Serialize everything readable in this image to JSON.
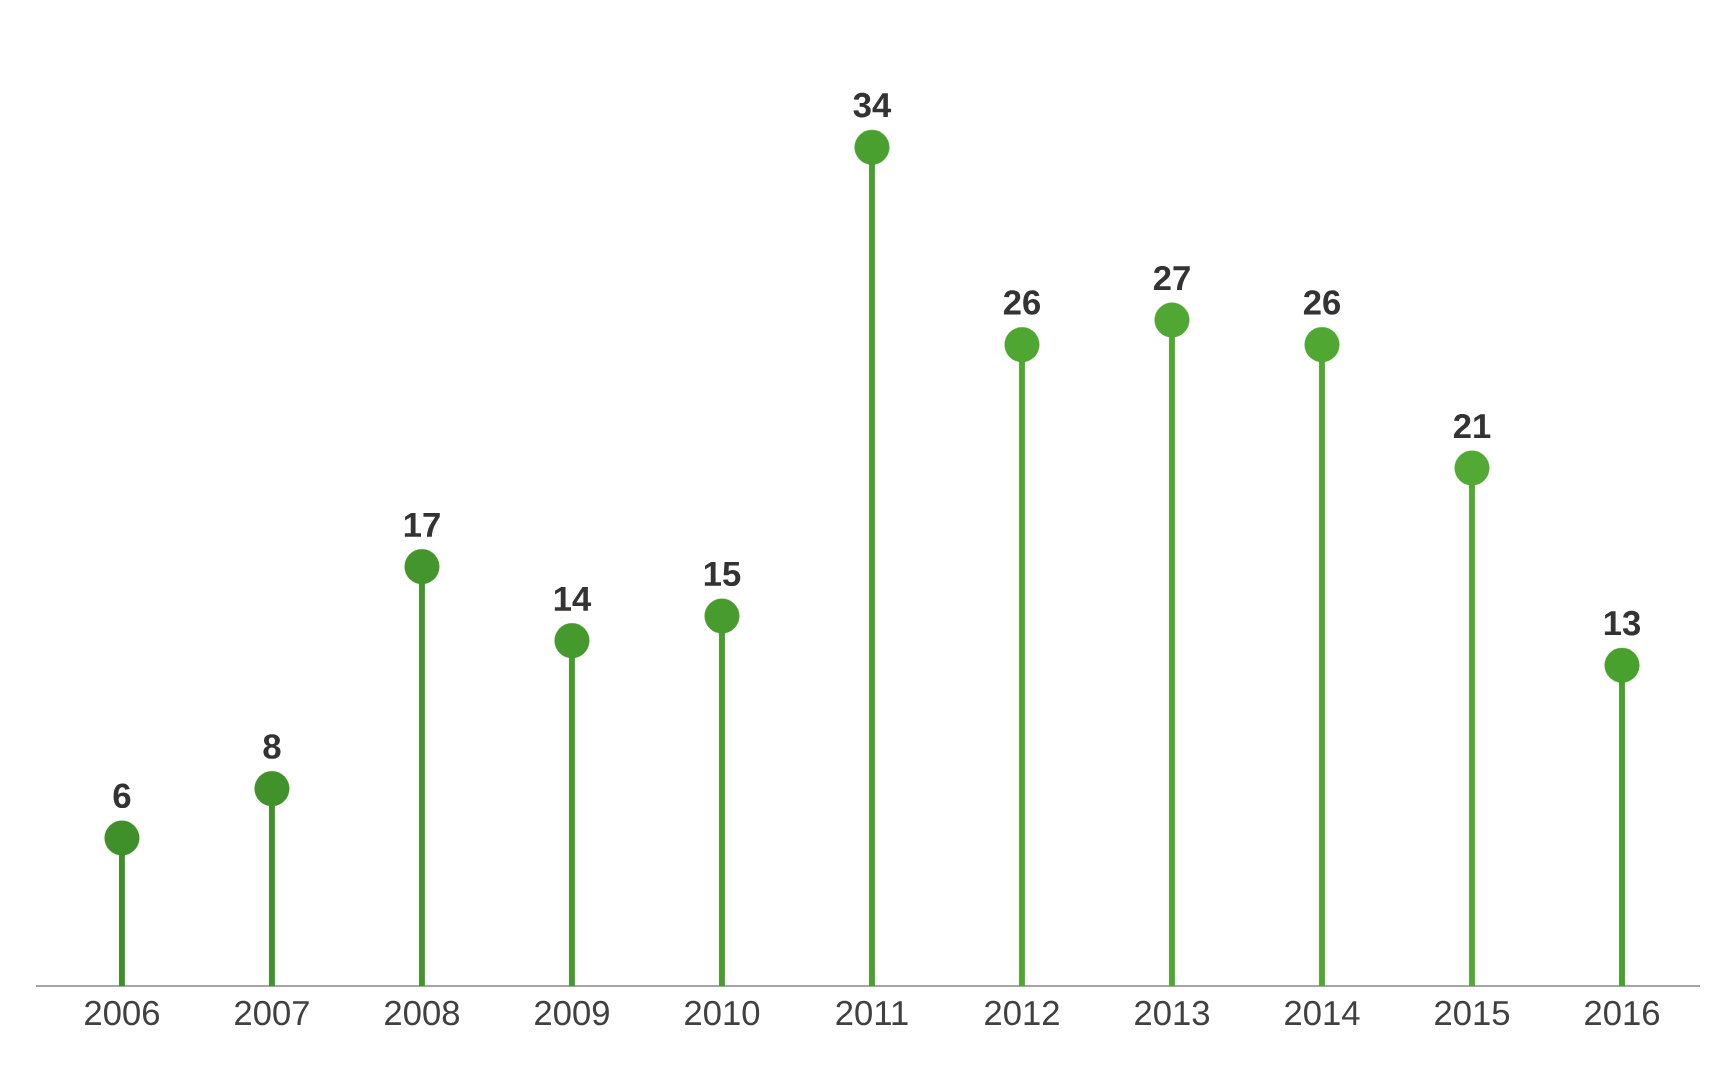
{
  "chart_data": {
    "type": "lollipop",
    "categories": [
      "2006",
      "2007",
      "2008",
      "2009",
      "2010",
      "2011",
      "2012",
      "2013",
      "2014",
      "2015",
      "2016"
    ],
    "values": [
      6,
      8,
      17,
      14,
      15,
      34,
      26,
      27,
      26,
      21,
      13
    ],
    "colors": [
      "#3f8f2a",
      "#41922b",
      "#44962c",
      "#46992d",
      "#479c2d",
      "#4aa02e",
      "#4fa731",
      "#50a832",
      "#50a832",
      "#52a933",
      "#48a02d"
    ],
    "tick_labels": "x",
    "data_labels": true,
    "marker": "circle"
  }
}
